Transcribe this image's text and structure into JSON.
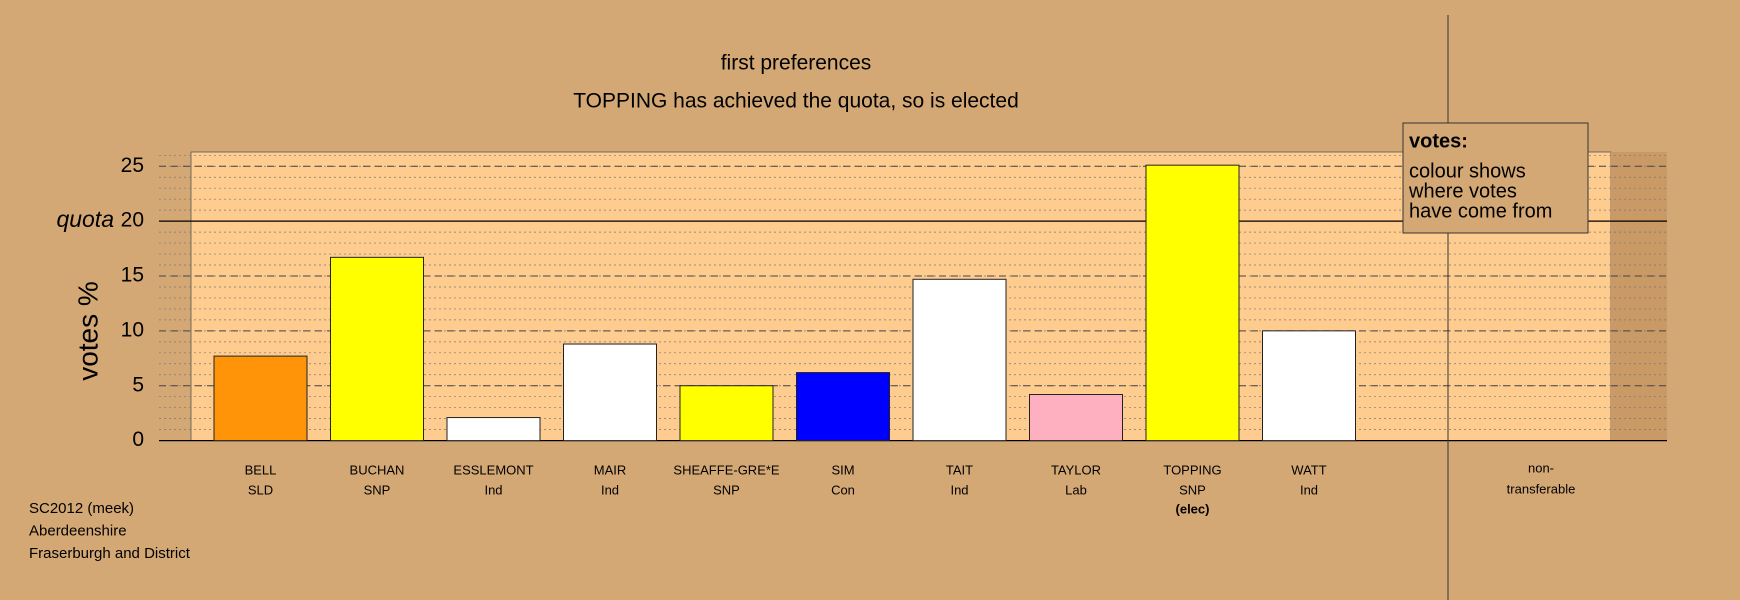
{
  "chart_data": {
    "type": "bar",
    "title": "first preferences",
    "subtitle": "TOPPING has achieved the quota, so is elected",
    "y_label": "votes %",
    "quota": 20,
    "quota_label": "quota",
    "categories": [
      "BELL",
      "BUCHAN",
      "ESSLEMONT",
      "MAIR",
      "SHEAFFE-GRE*E",
      "SIM",
      "TAIT",
      "TAYLOR",
      "TOPPING",
      "WATT"
    ],
    "parties": [
      "SLD",
      "SNP",
      "Ind",
      "Ind",
      "SNP",
      "Con",
      "Ind",
      "Lab",
      "SNP",
      "Ind"
    ],
    "elected_note": {
      "index": 8,
      "text": "(elec)"
    },
    "values": [
      7.7,
      16.7,
      2.1,
      8.8,
      5.0,
      6.2,
      14.7,
      4.2,
      25.1,
      10.0
    ],
    "colors": [
      "#ff9408",
      "#ffff00",
      "#ffffff",
      "#ffffff",
      "#ffff00",
      "#0000ff",
      "#ffffff",
      "#ffb0c0",
      "#ffff00",
      "#ffffff"
    ],
    "non_transferable_label": [
      "non-",
      "transferable"
    ],
    "ylim": [
      0,
      26.3
    ],
    "yticks": [
      0,
      5,
      10,
      15,
      20,
      25
    ],
    "minor_grid_step": 1,
    "legend": {
      "title": "votes:",
      "lines": [
        "colour shows",
        "where votes",
        "have come from"
      ]
    },
    "footnote": [
      "SC2012 (meek)",
      "Aberdeenshire",
      "Fraserburgh and District"
    ]
  }
}
